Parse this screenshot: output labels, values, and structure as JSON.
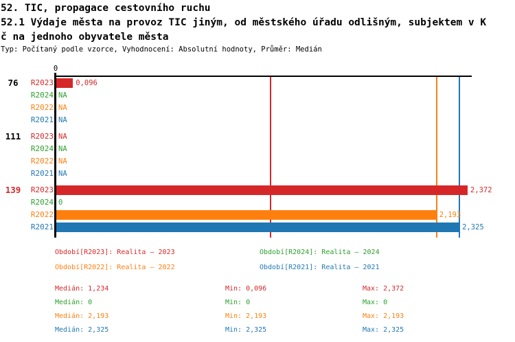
{
  "header": {
    "title": "52. TIC, propagace cestovního ruchu",
    "subtitle_line1": "52.1 Výdaje města na provoz TIC jiným, od městského úřadu odlišným, subjektem v K",
    "subtitle_line2": "č na jednoho obyvatele města",
    "meta": "Typ: Počítaný podle vzorce, Vyhodnocení: Absolutní hodnoty, Průměr: Medián"
  },
  "colors": {
    "R2023": "#d62728",
    "R2024": "#2ca02c",
    "R2022": "#ff7f0e",
    "R2021": "#1f77b4",
    "axis": "#000000",
    "highlight_group": "#d62728",
    "normal_group": "#000000"
  },
  "chart_data": {
    "type": "bar",
    "orientation": "horizontal",
    "xlim": [
      0,
      2.372
    ],
    "x_origin_label": "0",
    "grid": "median-lines-only",
    "series_order": [
      "R2023",
      "R2024",
      "R2022",
      "R2021"
    ],
    "groups": [
      {
        "label": "76",
        "highlighted": false,
        "bars": [
          {
            "series": "R2023",
            "value": 0.096,
            "label": "0,096"
          },
          {
            "series": "R2024",
            "value": null,
            "label": "NA"
          },
          {
            "series": "R2022",
            "value": null,
            "label": "NA"
          },
          {
            "series": "R2021",
            "value": null,
            "label": "NA"
          }
        ]
      },
      {
        "label": "111",
        "highlighted": false,
        "bars": [
          {
            "series": "R2023",
            "value": null,
            "label": "NA"
          },
          {
            "series": "R2024",
            "value": null,
            "label": "NA"
          },
          {
            "series": "R2022",
            "value": null,
            "label": "NA"
          },
          {
            "series": "R2021",
            "value": null,
            "label": "NA"
          }
        ]
      },
      {
        "label": "139",
        "highlighted": true,
        "bars": [
          {
            "series": "R2023",
            "value": 2.372,
            "label": "2,372"
          },
          {
            "series": "R2024",
            "value": 0,
            "label": "0"
          },
          {
            "series": "R2022",
            "value": 2.193,
            "label": "2,193"
          },
          {
            "series": "R2021",
            "value": 2.325,
            "label": "2,325"
          }
        ]
      }
    ],
    "median_lines": [
      {
        "series": "R2023",
        "value": 1.234
      },
      {
        "series": "R2022",
        "value": 2.193
      },
      {
        "series": "R2021",
        "value": 2.325
      }
    ]
  },
  "legend": [
    {
      "series": "R2023",
      "text": "Období[R2023]: Realita – 2023"
    },
    {
      "series": "R2024",
      "text": "Období[R2024]: Realita – 2024"
    },
    {
      "series": "R2022",
      "text": "Období[R2022]: Realita – 2022"
    },
    {
      "series": "R2021",
      "text": "Období[R2021]: Realita – 2021"
    }
  ],
  "stats": [
    {
      "series": "R2023",
      "median_text": "Medián: 1,234",
      "min_text": "Min: 0,096",
      "max_text": "Max: 2,372"
    },
    {
      "series": "R2024",
      "median_text": "Medián: 0",
      "min_text": "Min: 0",
      "max_text": "Max: 0"
    },
    {
      "series": "R2022",
      "median_text": "Medián: 2,193",
      "min_text": "Min: 2,193",
      "max_text": "Max: 2,193"
    },
    {
      "series": "R2021",
      "median_text": "Medián: 2,325",
      "min_text": "Min: 2,325",
      "max_text": "Max: 2,325"
    }
  ]
}
